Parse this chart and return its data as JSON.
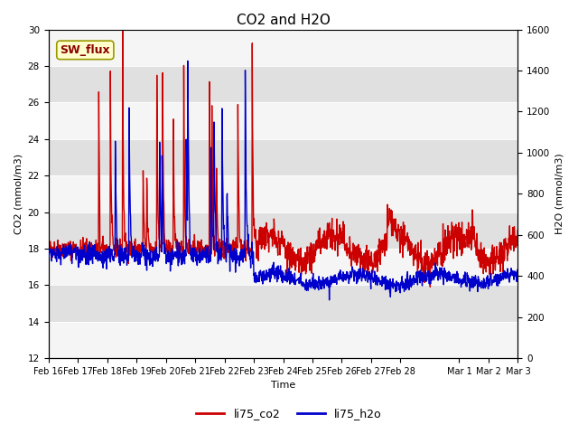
{
  "title": "CO2 and H2O",
  "xlabel": "Time",
  "ylabel_left": "CO2 (mmol/m3)",
  "ylabel_right": "H2O (mmol/m3)",
  "ylim_left": [
    12,
    30
  ],
  "ylim_right": [
    0,
    1600
  ],
  "yticks_left": [
    12,
    14,
    16,
    18,
    20,
    22,
    24,
    26,
    28,
    30
  ],
  "yticks_right": [
    0,
    200,
    400,
    600,
    800,
    1000,
    1200,
    1400,
    1600
  ],
  "co2_color": "#cc0000",
  "h2o_color": "#0000cc",
  "annotation_text": "SW_flux",
  "annotation_bg": "#ffffcc",
  "annotation_border": "#999900",
  "title_fontsize": 11,
  "axis_fontsize": 8,
  "tick_fontsize": 7.5,
  "legend_fontsize": 9,
  "line_width": 1.0,
  "band_light": "#f5f5f5",
  "band_dark": "#e0e0e0"
}
